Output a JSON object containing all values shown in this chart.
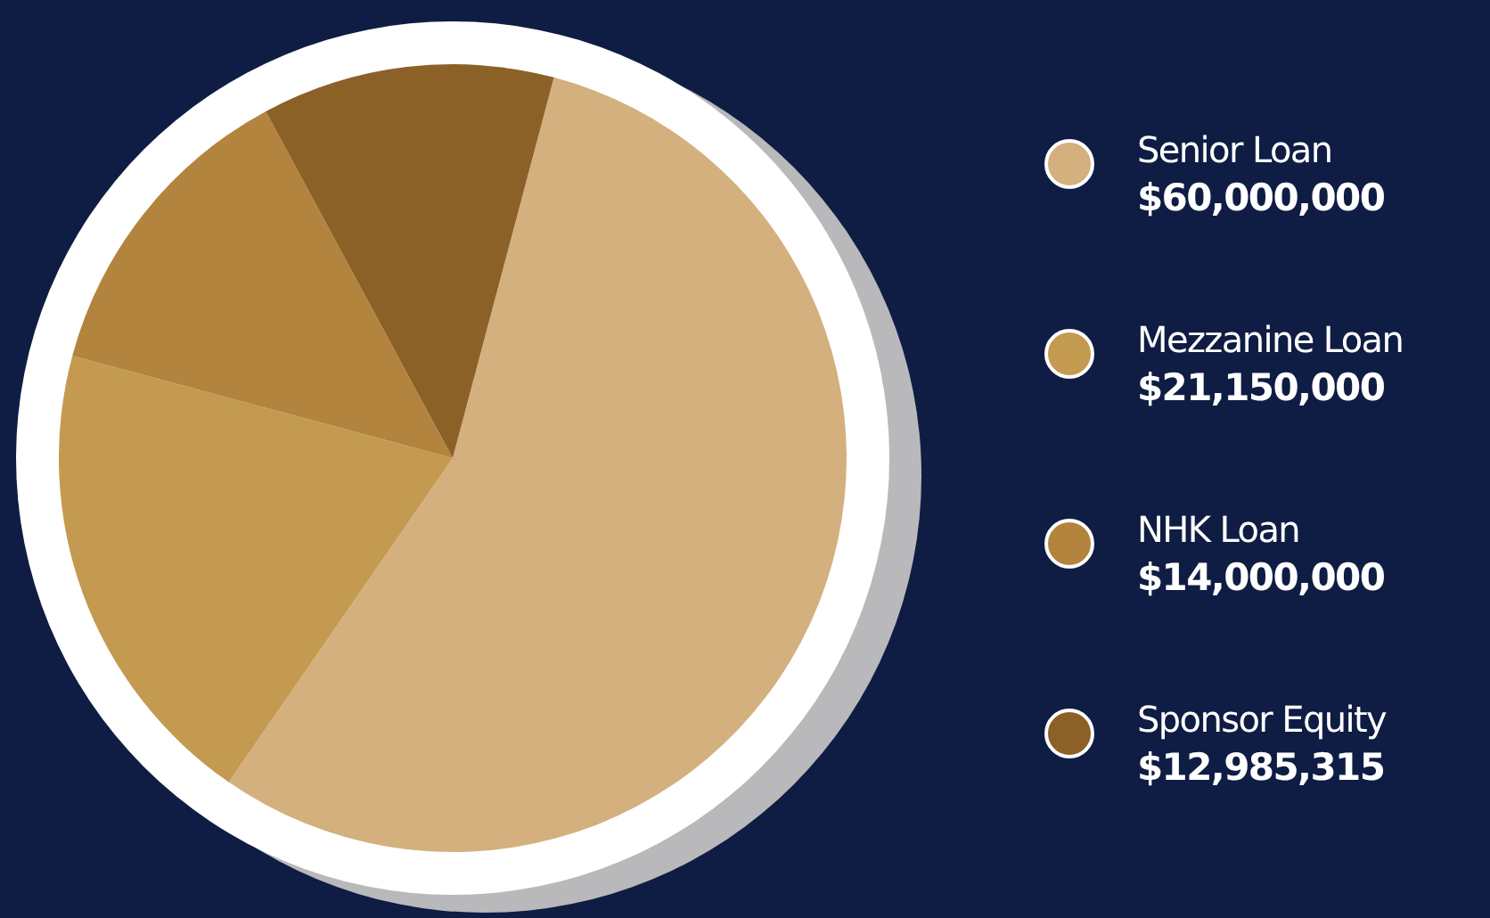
{
  "chart_data": {
    "type": "pie",
    "categories": [
      "Senior Loan",
      "Mezzanine Loan",
      "NHK Loan",
      "Sponsor Equity"
    ],
    "values": [
      60000000,
      21150000,
      14000000,
      12985315
    ],
    "colors": [
      "#d4b07e",
      "#c49a50",
      "#b3843e",
      "#8c6128"
    ],
    "value_labels": [
      "$60,000,000",
      "$21,150,000",
      "$14,000,000",
      "$12,985,315"
    ],
    "legend": "right"
  }
}
